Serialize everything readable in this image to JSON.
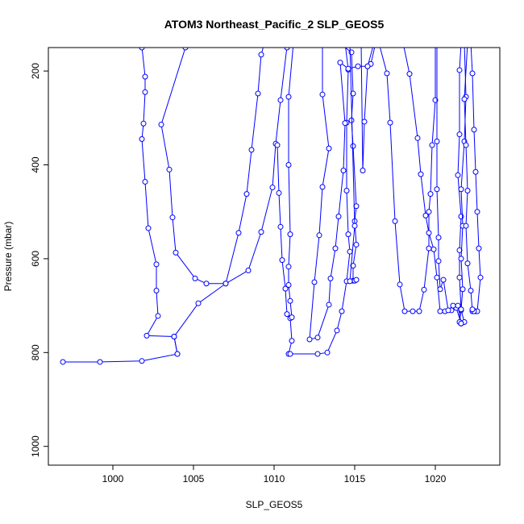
{
  "chart_data": {
    "type": "line",
    "title": "ATOM3 Northeast_Pacific_2 SLP_GEOS5",
    "xlabel": "SLP_GEOS5",
    "ylabel": "Pressure (mbar)",
    "xlim": [
      996,
      1024
    ],
    "ylim": [
      1040,
      150
    ],
    "y_reversed": true,
    "grid": false,
    "xticks": [
      1000,
      1005,
      1010,
      1015,
      1020
    ],
    "yticks": [
      200,
      400,
      600,
      800,
      1000
    ],
    "series_color": "#0000ff",
    "marker": "open-circle",
    "series": [
      {
        "points": [
          [
            996.9,
            820
          ],
          [
            999.2,
            820
          ],
          [
            1001.8,
            818
          ],
          [
            1004.0,
            803
          ],
          [
            1003.8,
            766
          ],
          [
            1005.3,
            695
          ],
          [
            1007.0,
            653
          ],
          [
            1008.4,
            625
          ],
          [
            1009.2,
            543
          ],
          [
            1009.9,
            448
          ],
          [
            1010.1,
            355
          ],
          [
            1010.4,
            262
          ],
          [
            1010.8,
            148
          ]
        ]
      },
      {
        "points": [
          [
            1001.8,
            148
          ],
          [
            1002.0,
            212
          ],
          [
            1002.0,
            245
          ],
          [
            1001.9,
            312
          ],
          [
            1001.8,
            345
          ],
          [
            1002.0,
            436
          ],
          [
            1002.2,
            535
          ],
          [
            1002.7,
            612
          ],
          [
            1002.7,
            668
          ],
          [
            1002.8,
            722
          ],
          [
            1002.1,
            764
          ],
          [
            1003.8,
            766
          ],
          [
            1004.0,
            803
          ]
        ]
      },
      {
        "points": [
          [
            1004.5,
            150
          ],
          [
            1003.0,
            314
          ],
          [
            1003.5,
            410
          ],
          [
            1003.7,
            512
          ],
          [
            1003.9,
            587
          ],
          [
            1005.1,
            642
          ],
          [
            1005.8,
            653
          ],
          [
            1007.0,
            653
          ],
          [
            1007.8,
            545
          ],
          [
            1008.3,
            462
          ],
          [
            1008.6,
            368
          ],
          [
            1009.0,
            248
          ],
          [
            1009.2,
            165
          ],
          [
            1009.4,
            140
          ]
        ]
      },
      {
        "points": [
          [
            1010.2,
            358
          ],
          [
            1010.3,
            460
          ],
          [
            1010.4,
            532
          ],
          [
            1010.5,
            603
          ],
          [
            1010.7,
            664
          ],
          [
            1010.8,
            718
          ],
          [
            1011.0,
            727
          ],
          [
            1011.1,
            775
          ],
          [
            1010.9,
            803
          ],
          [
            1011.0,
            803
          ],
          [
            1012.7,
            803
          ],
          [
            1013.3,
            800
          ],
          [
            1013.9,
            753
          ],
          [
            1014.2,
            712
          ],
          [
            1014.5,
            648
          ],
          [
            1014.7,
            585
          ],
          [
            1014.6,
            548
          ],
          [
            1014.5,
            455
          ],
          [
            1014.5,
            310
          ],
          [
            1014.6,
            197
          ],
          [
            1014.4,
            140
          ]
        ]
      },
      {
        "points": [
          [
            1011.2,
            140
          ],
          [
            1010.9,
            255
          ],
          [
            1010.9,
            400
          ],
          [
            1011.0,
            548
          ],
          [
            1010.9,
            617
          ],
          [
            1010.9,
            656
          ],
          [
            1011.0,
            690
          ],
          [
            1011.1,
            725
          ]
        ]
      },
      {
        "points": [
          [
            1013.0,
            140
          ],
          [
            1013.0,
            250
          ],
          [
            1013.4,
            365
          ],
          [
            1013.0,
            447
          ],
          [
            1012.8,
            550
          ],
          [
            1012.5,
            650
          ],
          [
            1012.2,
            772
          ],
          [
            1012.7,
            768
          ],
          [
            1013.4,
            698
          ],
          [
            1013.5,
            642
          ],
          [
            1013.8,
            578
          ],
          [
            1014.0,
            510
          ],
          [
            1014.3,
            412
          ],
          [
            1014.4,
            311
          ],
          [
            1014.1,
            182
          ],
          [
            1014.6,
            195
          ],
          [
            1015.2,
            190
          ],
          [
            1015.8,
            190
          ],
          [
            1016.0,
            185
          ],
          [
            1016.3,
            140
          ]
        ]
      },
      {
        "points": [
          [
            1014.0,
            140
          ],
          [
            1014.8,
            160
          ],
          [
            1014.9,
            248
          ],
          [
            1014.8,
            305
          ],
          [
            1014.9,
            360
          ],
          [
            1015.1,
            488
          ],
          [
            1015.0,
            520
          ],
          [
            1015.1,
            570
          ],
          [
            1014.9,
            615
          ],
          [
            1014.9,
            647
          ],
          [
            1015.0,
            647
          ],
          [
            1015.1,
            645
          ]
        ]
      },
      {
        "points": [
          [
            1014.7,
            140
          ],
          [
            1015.0,
            530
          ],
          [
            1014.7,
            648
          ]
        ]
      },
      {
        "points": [
          [
            1015.4,
            140
          ],
          [
            1015.5,
            412
          ],
          [
            1015.6,
            308
          ],
          [
            1015.8,
            190
          ],
          [
            1016.2,
            140
          ]
        ]
      },
      {
        "points": [
          [
            1016.5,
            140
          ],
          [
            1017.0,
            205
          ],
          [
            1017.2,
            310
          ],
          [
            1017.5,
            520
          ],
          [
            1017.8,
            655
          ],
          [
            1018.1,
            712
          ],
          [
            1018.6,
            712
          ],
          [
            1019.0,
            712
          ],
          [
            1019.3,
            666
          ],
          [
            1019.6,
            578
          ],
          [
            1019.6,
            500
          ],
          [
            1019.7,
            462
          ],
          [
            1019.8,
            358
          ],
          [
            1020.0,
            262
          ],
          [
            1020.0,
            140
          ]
        ]
      },
      {
        "points": [
          [
            1018.0,
            140
          ],
          [
            1018.4,
            206
          ],
          [
            1018.9,
            343
          ],
          [
            1019.1,
            420
          ],
          [
            1019.4,
            508
          ],
          [
            1019.6,
            545
          ],
          [
            1019.9,
            580
          ],
          [
            1020.1,
            640
          ],
          [
            1020.3,
            712
          ],
          [
            1020.6,
            712
          ],
          [
            1021.0,
            710
          ],
          [
            1021.3,
            705
          ],
          [
            1021.6,
            738
          ],
          [
            1021.8,
            735
          ],
          [
            1021.6,
            710
          ],
          [
            1021.5,
            640
          ],
          [
            1021.5,
            582
          ],
          [
            1021.6,
            510
          ],
          [
            1021.4,
            422
          ],
          [
            1021.5,
            335
          ],
          [
            1021.5,
            198
          ],
          [
            1021.6,
            140
          ]
        ]
      },
      {
        "points": [
          [
            1020.1,
            140
          ],
          [
            1020.1,
            350
          ],
          [
            1020.1,
            452
          ],
          [
            1020.2,
            555
          ],
          [
            1020.2,
            605
          ],
          [
            1020.3,
            665
          ],
          [
            1020.5,
            645
          ],
          [
            1020.8,
            710
          ],
          [
            1021.1,
            700
          ],
          [
            1021.4,
            700
          ],
          [
            1021.6,
            738
          ]
        ]
      },
      {
        "points": [
          [
            1021.8,
            140
          ],
          [
            1021.9,
            255
          ],
          [
            1021.8,
            350
          ],
          [
            1021.6,
            452
          ],
          [
            1021.7,
            530
          ],
          [
            1021.6,
            600
          ],
          [
            1021.7,
            665
          ],
          [
            1021.6,
            708
          ],
          [
            1021.5,
            735
          ],
          [
            1021.6,
            738
          ]
        ]
      },
      {
        "points": [
          [
            1022.0,
            140
          ],
          [
            1021.8,
            260
          ],
          [
            1021.9,
            358
          ],
          [
            1022.0,
            455
          ],
          [
            1021.9,
            530
          ],
          [
            1022.0,
            610
          ],
          [
            1022.2,
            668
          ],
          [
            1022.3,
            712
          ],
          [
            1022.5,
            712
          ]
        ]
      },
      {
        "points": [
          [
            1022.2,
            140
          ],
          [
            1022.3,
            205
          ],
          [
            1022.4,
            325
          ],
          [
            1022.5,
            415
          ],
          [
            1022.6,
            500
          ],
          [
            1022.7,
            578
          ],
          [
            1022.8,
            640
          ],
          [
            1022.6,
            712
          ],
          [
            1022.4,
            712
          ],
          [
            1022.3,
            708
          ]
        ]
      }
    ]
  }
}
